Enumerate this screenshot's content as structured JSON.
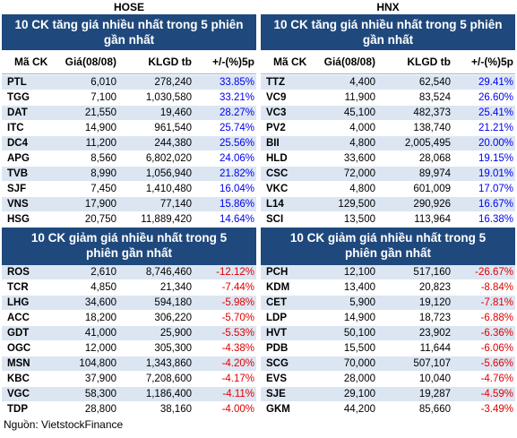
{
  "markets": [
    {
      "name": "HOSE",
      "gainers": {
        "title": "10 CK tăng giá nhiều nhất trong 5 phiên gần nhất",
        "columns": [
          "Mã CK",
          "Giá(08/08)",
          "KLGD tb",
          "+/-(%)5p"
        ],
        "rows": [
          [
            "PTL",
            "6,010",
            "278,240",
            "33.85%"
          ],
          [
            "TGG",
            "7,100",
            "1,030,580",
            "33.21%"
          ],
          [
            "DAT",
            "21,550",
            "19,460",
            "28.27%"
          ],
          [
            "ITC",
            "14,900",
            "961,540",
            "25.74%"
          ],
          [
            "DC4",
            "11,200",
            "244,380",
            "25.56%"
          ],
          [
            "APG",
            "8,560",
            "6,802,020",
            "24.06%"
          ],
          [
            "TVB",
            "8,990",
            "1,056,940",
            "21.82%"
          ],
          [
            "SJF",
            "7,450",
            "1,410,480",
            "16.04%"
          ],
          [
            "VNS",
            "17,900",
            "77,140",
            "15.86%"
          ],
          [
            "HSG",
            "20,750",
            "11,889,420",
            "14.64%"
          ]
        ]
      },
      "losers": {
        "title": "10 CK giảm giá nhiều nhất trong 5 phiên gần nhất",
        "rows": [
          [
            "ROS",
            "2,610",
            "8,746,460",
            "-12.12%"
          ],
          [
            "TCR",
            "4,850",
            "21,340",
            "-7.44%"
          ],
          [
            "LHG",
            "34,600",
            "594,180",
            "-5.98%"
          ],
          [
            "ACC",
            "18,200",
            "306,220",
            "-5.70%"
          ],
          [
            "GDT",
            "41,000",
            "25,900",
            "-5.53%"
          ],
          [
            "OGC",
            "12,000",
            "305,300",
            "-4.38%"
          ],
          [
            "MSN",
            "104,800",
            "1,343,860",
            "-4.20%"
          ],
          [
            "KBC",
            "37,900",
            "7,208,600",
            "-4.17%"
          ],
          [
            "VGC",
            "58,300",
            "1,186,400",
            "-4.11%"
          ],
          [
            "TDP",
            "28,800",
            "38,160",
            "-4.00%"
          ]
        ]
      }
    },
    {
      "name": "HNX",
      "gainers": {
        "title": "10 CK tăng giá nhiều nhất trong 5 phiên gần nhất",
        "columns": [
          "Mã CK",
          "Giá(08/08)",
          "KLGD tb",
          "+/-(%)5p"
        ],
        "rows": [
          [
            "TTZ",
            "4,400",
            "62,540",
            "29.41%"
          ],
          [
            "VC9",
            "11,900",
            "83,524",
            "26.60%"
          ],
          [
            "VC3",
            "45,100",
            "482,373",
            "25.41%"
          ],
          [
            "PV2",
            "4,000",
            "138,740",
            "21.21%"
          ],
          [
            "BII",
            "4,800",
            "2,005,495",
            "20.00%"
          ],
          [
            "HLD",
            "33,600",
            "28,068",
            "19.15%"
          ],
          [
            "CSC",
            "72,000",
            "89,974",
            "19.01%"
          ],
          [
            "VKC",
            "4,800",
            "601,009",
            "17.07%"
          ],
          [
            "L14",
            "129,500",
            "290,926",
            "16.67%"
          ],
          [
            "SCI",
            "13,500",
            "113,964",
            "16.38%"
          ]
        ]
      },
      "losers": {
        "title": "10 CK giảm giá nhiều nhất trong 5 phiên gần nhất",
        "rows": [
          [
            "PCH",
            "12,100",
            "517,160",
            "-26.67%"
          ],
          [
            "KDM",
            "13,400",
            "20,823",
            "-8.84%"
          ],
          [
            "CET",
            "5,900",
            "19,120",
            "-7.81%"
          ],
          [
            "LDP",
            "14,900",
            "18,723",
            "-6.88%"
          ],
          [
            "HVT",
            "50,100",
            "23,902",
            "-6.36%"
          ],
          [
            "PDB",
            "15,500",
            "11,644",
            "-6.06%"
          ],
          [
            "SCG",
            "70,000",
            "507,107",
            "-5.66%"
          ],
          [
            "EVS",
            "28,000",
            "10,040",
            "-4.76%"
          ],
          [
            "SJE",
            "29,100",
            "19,287",
            "-4.59%"
          ],
          [
            "GKM",
            "44,200",
            "85,660",
            "-3.49%"
          ]
        ]
      }
    }
  ],
  "source": "Nguồn: VietstockFinance"
}
